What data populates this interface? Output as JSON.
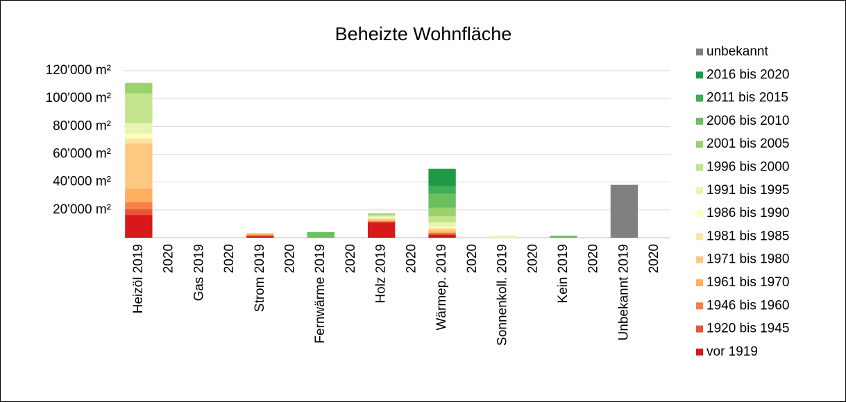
{
  "chart_data": {
    "type": "stacked_bar",
    "title": "Beheizte Wohnfläche",
    "categories": [
      "Heizöl 2019",
      "2020",
      "Gas 2019",
      "2020",
      "Strom 2019",
      "2020",
      "Fernwärme 2019",
      "2020",
      "Holz 2019",
      "2020",
      "Wärmep. 2019",
      "2020",
      "Sonnenkoll. 2019",
      "2020",
      "Kein 2019",
      "2020",
      "Unbekannt 2019",
      "2020"
    ],
    "series": [
      {
        "name": "vor 1919",
        "color": "#d7191c",
        "values": [
          16400,
          0,
          0,
          0,
          1000,
          0,
          0,
          0,
          11000,
          0,
          2000,
          0,
          0,
          0,
          0,
          0,
          0,
          0
        ]
      },
      {
        "name": "1920 bis 1945",
        "color": "#e8553a",
        "values": [
          4000,
          0,
          0,
          0,
          500,
          0,
          0,
          0,
          500,
          0,
          1000,
          0,
          0,
          0,
          0,
          0,
          0,
          0
        ]
      },
      {
        "name": "1946 bis 1960",
        "color": "#f5804a",
        "values": [
          5000,
          0,
          0,
          0,
          500,
          0,
          0,
          0,
          500,
          0,
          500,
          0,
          0,
          0,
          0,
          0,
          0,
          0
        ]
      },
      {
        "name": "1961 bis 1970",
        "color": "#fdae61",
        "values": [
          10000,
          0,
          0,
          0,
          500,
          0,
          0,
          0,
          500,
          0,
          1000,
          0,
          0,
          0,
          0,
          0,
          0,
          0
        ]
      },
      {
        "name": "1971 bis 1980",
        "color": "#fdc882",
        "values": [
          32400,
          0,
          0,
          0,
          1000,
          0,
          0,
          0,
          1000,
          0,
          1500,
          0,
          0,
          0,
          0,
          0,
          0,
          0
        ]
      },
      {
        "name": "1981 bis 1985",
        "color": "#fee3a0",
        "values": [
          3500,
          0,
          0,
          0,
          0,
          0,
          0,
          0,
          500,
          0,
          1000,
          0,
          0,
          0,
          0,
          0,
          0,
          0
        ]
      },
      {
        "name": "1986 bis 1990",
        "color": "#ffffc0",
        "values": [
          3500,
          0,
          0,
          0,
          0,
          0,
          0,
          0,
          500,
          0,
          1000,
          0,
          0,
          0,
          0,
          0,
          0,
          0
        ]
      },
      {
        "name": "1991 bis 1995",
        "color": "#e6f5b0",
        "values": [
          7500,
          0,
          0,
          0,
          0,
          0,
          0,
          0,
          1000,
          0,
          3000,
          0,
          1500,
          0,
          0,
          0,
          0,
          0
        ]
      },
      {
        "name": "1996 bis 2000",
        "color": "#c3e48d",
        "values": [
          21400,
          0,
          0,
          0,
          0,
          0,
          0,
          0,
          1000,
          0,
          4500,
          0,
          0,
          0,
          0,
          0,
          0,
          0
        ]
      },
      {
        "name": "2001 bis 2005",
        "color": "#9ad26b",
        "values": [
          7500,
          0,
          0,
          0,
          0,
          0,
          0,
          0,
          1000,
          0,
          6000,
          0,
          0,
          0,
          0,
          0,
          0,
          0
        ]
      },
      {
        "name": "2006 bis 2010",
        "color": "#6abf5e",
        "values": [
          0,
          0,
          0,
          0,
          0,
          0,
          4000,
          0,
          0,
          0,
          10000,
          0,
          0,
          0,
          1500,
          0,
          0,
          0
        ]
      },
      {
        "name": "2011 bis 2015",
        "color": "#3fae54",
        "values": [
          0,
          0,
          0,
          0,
          0,
          0,
          0,
          0,
          0,
          0,
          5500,
          0,
          0,
          0,
          0,
          0,
          0,
          0
        ]
      },
      {
        "name": "2016 bis 2020",
        "color": "#1e9a47",
        "values": [
          0,
          0,
          0,
          0,
          0,
          0,
          0,
          0,
          0,
          0,
          12500,
          0,
          0,
          0,
          0,
          0,
          0,
          0
        ]
      },
      {
        "name": "unbekannt",
        "color": "#808080",
        "values": [
          0,
          0,
          0,
          0,
          0,
          0,
          0,
          0,
          0,
          0,
          0,
          0,
          0,
          0,
          0,
          0,
          38000,
          0
        ]
      }
    ],
    "ylim": [
      0,
      120000
    ],
    "yticks": [
      {
        "value": 20000,
        "label": "20'000 m²"
      },
      {
        "value": 40000,
        "label": "40'000 m²"
      },
      {
        "value": 60000,
        "label": "60'000 m²"
      },
      {
        "value": 80000,
        "label": "80'000 m²"
      },
      {
        "value": 100000,
        "label": "100'000 m²"
      },
      {
        "value": 120000,
        "label": "120'000 m²"
      }
    ],
    "grid": true,
    "legend": "right"
  }
}
